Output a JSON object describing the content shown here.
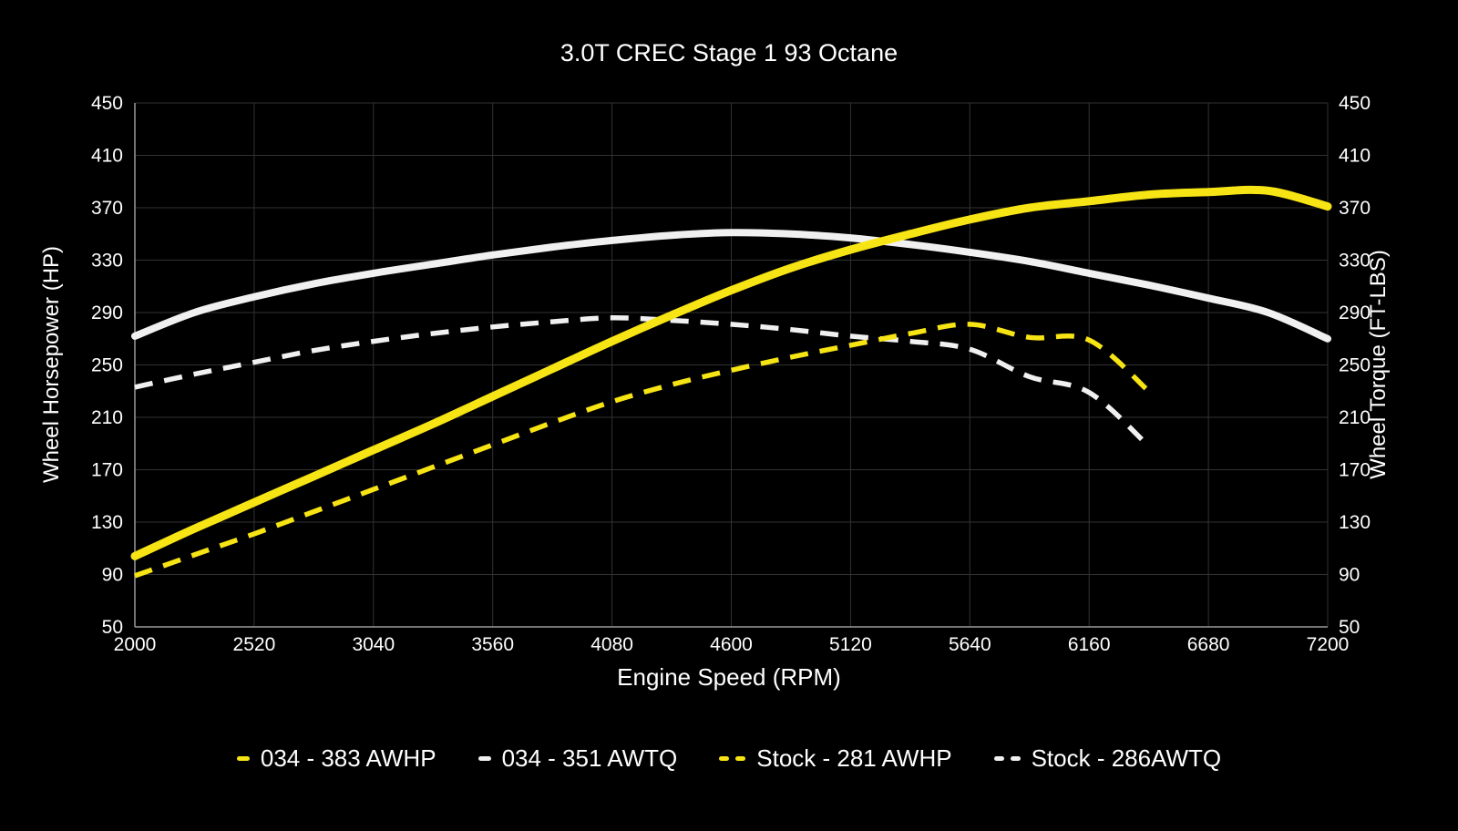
{
  "title": "3.0T CREC Stage 1 93 Octane",
  "colors": {
    "background": "#000000",
    "text": "#ffffff",
    "grid": "#323232",
    "spine": "#9a9a9a",
    "accent_yellow": "#f7e414",
    "line_white": "#f0f0f0"
  },
  "chart_data": {
    "type": "line",
    "title": "3.0T CREC Stage 1 93 Octane",
    "xlabel": "Engine Speed (RPM)",
    "ylabel_left": "Wheel Horsepower (HP)",
    "ylabel_right": "Wheel Torque (FT-LBS)",
    "xlim": [
      2000,
      7200
    ],
    "ylim": [
      50,
      450
    ],
    "x_ticks": [
      2000,
      2520,
      3040,
      3560,
      4080,
      4600,
      5120,
      5640,
      6160,
      6680,
      7200
    ],
    "y_ticks": [
      450,
      410,
      370,
      330,
      290,
      250,
      210,
      170,
      130,
      90,
      50
    ],
    "grid": true,
    "legend_position": "bottom",
    "x": [
      2000,
      2260,
      2520,
      2780,
      3040,
      3300,
      3560,
      3820,
      4080,
      4340,
      4600,
      4860,
      5120,
      5380,
      5640,
      5900,
      6160,
      6420,
      6680,
      6940,
      7200
    ],
    "series": [
      {
        "name": "034 - 383 AWHP",
        "color": "#f7e414",
        "style": "solid",
        "width": 9,
        "peak": 383,
        "values": [
          104,
          125,
          145,
          165,
          185,
          205,
          226,
          247,
          268,
          288,
          307,
          324,
          338,
          350,
          361,
          370,
          375,
          380,
          382,
          383,
          371
        ]
      },
      {
        "name": "034 - 351 AWTQ",
        "color": "#f0f0f0",
        "style": "solid",
        "width": 8,
        "peak": 351,
        "values": [
          272,
          290,
          302,
          312,
          320,
          327,
          334,
          340,
          345,
          349,
          351,
          350,
          347,
          342,
          336,
          329,
          320,
          311,
          301,
          290,
          270
        ]
      },
      {
        "name": "Stock - 281 AWHP",
        "color": "#f7e414",
        "style": "dashed",
        "width": 5.5,
        "peak": 281,
        "values": [
          89,
          105,
          121,
          138,
          155,
          172,
          189,
          206,
          222,
          235,
          246,
          256,
          265,
          274,
          281,
          271,
          269,
          230,
          null,
          null,
          null
        ]
      },
      {
        "name": "Stock - 286AWTQ",
        "color": "#f0f0f0",
        "style": "dashed",
        "width": 5.5,
        "peak": 286,
        "values": [
          233,
          243,
          252,
          261,
          268,
          274,
          279,
          283,
          286,
          284,
          281,
          277,
          272,
          268,
          262,
          241,
          229,
          188,
          null,
          null,
          null
        ]
      }
    ]
  }
}
